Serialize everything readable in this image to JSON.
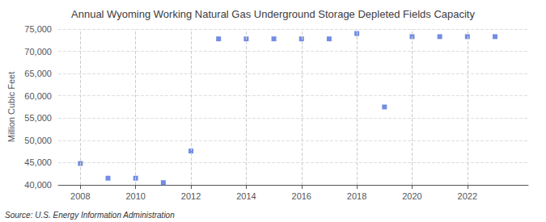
{
  "chart_data": {
    "type": "scatter",
    "title": "Annual Wyoming Working Natural Gas Underground Storage Depleted Fields Capacity",
    "ylabel": "Million Cubic Feet",
    "annotations": [
      "Source: U.S. Energy Information Administration"
    ],
    "x": [
      2008,
      2009,
      2010,
      2011,
      2012,
      2013,
      2014,
      2015,
      2016,
      2017,
      2018,
      2019,
      2020,
      2021,
      2022,
      2023
    ],
    "values": [
      44800,
      41500,
      41500,
      40500,
      47600,
      72800,
      72800,
      72800,
      72800,
      72800,
      74000,
      57500,
      73300,
      73300,
      73300,
      73300
    ],
    "marker": "square",
    "xlim": [
      2007.2,
      2024.2
    ],
    "xticks": [
      2008,
      2010,
      2012,
      2014,
      2016,
      2018,
      2020,
      2022
    ],
    "ylim": [
      40000,
      75000
    ],
    "yticks": [
      {
        "value": 40000,
        "label": "40,000"
      },
      {
        "value": 45000,
        "label": "45,000"
      },
      {
        "value": 50000,
        "label": "50,000"
      },
      {
        "value": 55000,
        "label": "55,000"
      },
      {
        "value": 60000,
        "label": "60,000"
      },
      {
        "value": 65000,
        "label": "65,000"
      },
      {
        "value": 70000,
        "label": "70,000"
      },
      {
        "value": 75000,
        "label": "75,000"
      }
    ],
    "grid": true
  }
}
